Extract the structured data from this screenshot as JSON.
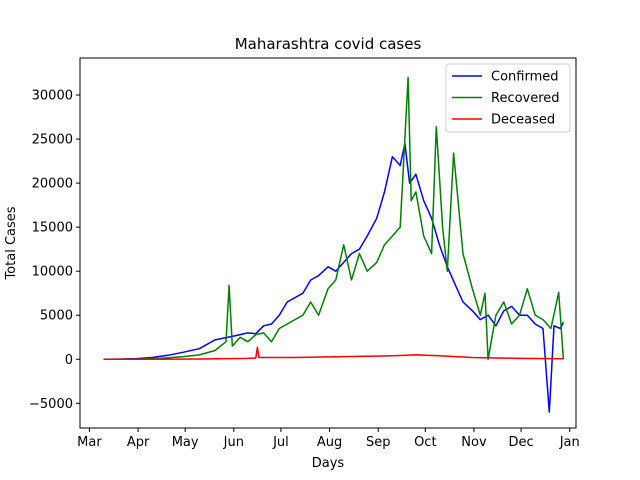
{
  "chart_data": {
    "type": "line",
    "title": "Maharashtra covid cases",
    "xlabel": "Days",
    "ylabel": "Total Cases",
    "x_ticks": [
      "Mar",
      "Apr",
      "May",
      "Jun",
      "Jul",
      "Aug",
      "Sep",
      "Oct",
      "Nov",
      "Dec",
      "Jan"
    ],
    "y_ticks": [
      -5000,
      0,
      5000,
      10000,
      15000,
      20000,
      25000,
      30000
    ],
    "xlim": [
      "2020-02-24",
      "2021-01-05"
    ],
    "ylim": [
      -7800,
      34200
    ],
    "legend_position": "upper right",
    "series": [
      {
        "name": "Confirmed",
        "color": "#0000ff",
        "points": [
          [
            "2020-03-10",
            0
          ],
          [
            "2020-03-20",
            20
          ],
          [
            "2020-03-31",
            80
          ],
          [
            "2020-04-10",
            200
          ],
          [
            "2020-04-20",
            450
          ],
          [
            "2020-04-30",
            800
          ],
          [
            "2020-05-10",
            1200
          ],
          [
            "2020-05-20",
            2200
          ],
          [
            "2020-05-31",
            2600
          ],
          [
            "2020-06-05",
            2800
          ],
          [
            "2020-06-10",
            3000
          ],
          [
            "2020-06-15",
            2900
          ],
          [
            "2020-06-20",
            3800
          ],
          [
            "2020-06-25",
            4000
          ],
          [
            "2020-06-30",
            5000
          ],
          [
            "2020-07-05",
            6500
          ],
          [
            "2020-07-10",
            7000
          ],
          [
            "2020-07-15",
            7500
          ],
          [
            "2020-07-20",
            9000
          ],
          [
            "2020-07-25",
            9500
          ],
          [
            "2020-07-31",
            10500
          ],
          [
            "2020-08-05",
            10000
          ],
          [
            "2020-08-10",
            11000
          ],
          [
            "2020-08-15",
            12000
          ],
          [
            "2020-08-20",
            12500
          ],
          [
            "2020-08-25",
            14000
          ],
          [
            "2020-08-31",
            16000
          ],
          [
            "2020-09-05",
            19000
          ],
          [
            "2020-09-10",
            23000
          ],
          [
            "2020-09-15",
            22000
          ],
          [
            "2020-09-18",
            24500
          ],
          [
            "2020-09-21",
            20000
          ],
          [
            "2020-09-25",
            21000
          ],
          [
            "2020-09-30",
            18000
          ],
          [
            "2020-10-05",
            16000
          ],
          [
            "2020-10-10",
            13000
          ],
          [
            "2020-10-15",
            10500
          ],
          [
            "2020-10-20",
            8500
          ],
          [
            "2020-10-25",
            6500
          ],
          [
            "2020-10-31",
            5500
          ],
          [
            "2020-11-05",
            4500
          ],
          [
            "2020-11-10",
            5000
          ],
          [
            "2020-11-15",
            3800
          ],
          [
            "2020-11-20",
            5500
          ],
          [
            "2020-11-25",
            6000
          ],
          [
            "2020-11-30",
            5000
          ],
          [
            "2020-12-05",
            5000
          ],
          [
            "2020-12-10",
            4000
          ],
          [
            "2020-12-15",
            3500
          ],
          [
            "2020-12-19",
            -6000
          ],
          [
            "2020-12-22",
            3800
          ],
          [
            "2020-12-26",
            3500
          ],
          [
            "2020-12-28",
            4200
          ]
        ]
      },
      {
        "name": "Recovered",
        "color": "#008000",
        "points": [
          [
            "2020-03-10",
            0
          ],
          [
            "2020-03-31",
            20
          ],
          [
            "2020-04-15",
            100
          ],
          [
            "2020-04-30",
            300
          ],
          [
            "2020-05-10",
            500
          ],
          [
            "2020-05-20",
            1000
          ],
          [
            "2020-05-27",
            2000
          ],
          [
            "2020-05-29",
            8400
          ],
          [
            "2020-05-31",
            1500
          ],
          [
            "2020-06-05",
            2500
          ],
          [
            "2020-06-10",
            2000
          ],
          [
            "2020-06-15",
            2800
          ],
          [
            "2020-06-20",
            3000
          ],
          [
            "2020-06-25",
            2000
          ],
          [
            "2020-06-30",
            3500
          ],
          [
            "2020-07-05",
            4000
          ],
          [
            "2020-07-10",
            4500
          ],
          [
            "2020-07-15",
            5000
          ],
          [
            "2020-07-20",
            6500
          ],
          [
            "2020-07-25",
            5000
          ],
          [
            "2020-07-31",
            8000
          ],
          [
            "2020-08-05",
            9000
          ],
          [
            "2020-08-10",
            13000
          ],
          [
            "2020-08-15",
            9000
          ],
          [
            "2020-08-20",
            12000
          ],
          [
            "2020-08-25",
            10000
          ],
          [
            "2020-08-31",
            11000
          ],
          [
            "2020-09-05",
            13000
          ],
          [
            "2020-09-10",
            14000
          ],
          [
            "2020-09-15",
            15000
          ],
          [
            "2020-09-20",
            32000
          ],
          [
            "2020-09-22",
            18000
          ],
          [
            "2020-09-25",
            19000
          ],
          [
            "2020-09-30",
            14000
          ],
          [
            "2020-10-05",
            12000
          ],
          [
            "2020-10-08",
            26400
          ],
          [
            "2020-10-12",
            15000
          ],
          [
            "2020-10-15",
            10000
          ],
          [
            "2020-10-19",
            23400
          ],
          [
            "2020-10-25",
            12000
          ],
          [
            "2020-10-31",
            8000
          ],
          [
            "2020-11-05",
            5000
          ],
          [
            "2020-11-08",
            7500
          ],
          [
            "2020-11-10",
            0
          ],
          [
            "2020-11-15",
            5000
          ],
          [
            "2020-11-20",
            6500
          ],
          [
            "2020-11-25",
            4000
          ],
          [
            "2020-11-30",
            5000
          ],
          [
            "2020-12-05",
            8000
          ],
          [
            "2020-12-10",
            5000
          ],
          [
            "2020-12-15",
            4500
          ],
          [
            "2020-12-20",
            3500
          ],
          [
            "2020-12-25",
            7600
          ],
          [
            "2020-12-28",
            0
          ]
        ]
      },
      {
        "name": "Deceased",
        "color": "#ff0000",
        "points": [
          [
            "2020-03-10",
            0
          ],
          [
            "2020-04-10",
            10
          ],
          [
            "2020-05-10",
            30
          ],
          [
            "2020-06-10",
            100
          ],
          [
            "2020-06-15",
            150
          ],
          [
            "2020-06-16",
            1350
          ],
          [
            "2020-06-17",
            200
          ],
          [
            "2020-07-10",
            200
          ],
          [
            "2020-08-10",
            300
          ],
          [
            "2020-09-10",
            400
          ],
          [
            "2020-09-25",
            500
          ],
          [
            "2020-10-10",
            400
          ],
          [
            "2020-10-31",
            200
          ],
          [
            "2020-11-30",
            100
          ],
          [
            "2020-12-28",
            50
          ]
        ]
      }
    ]
  }
}
